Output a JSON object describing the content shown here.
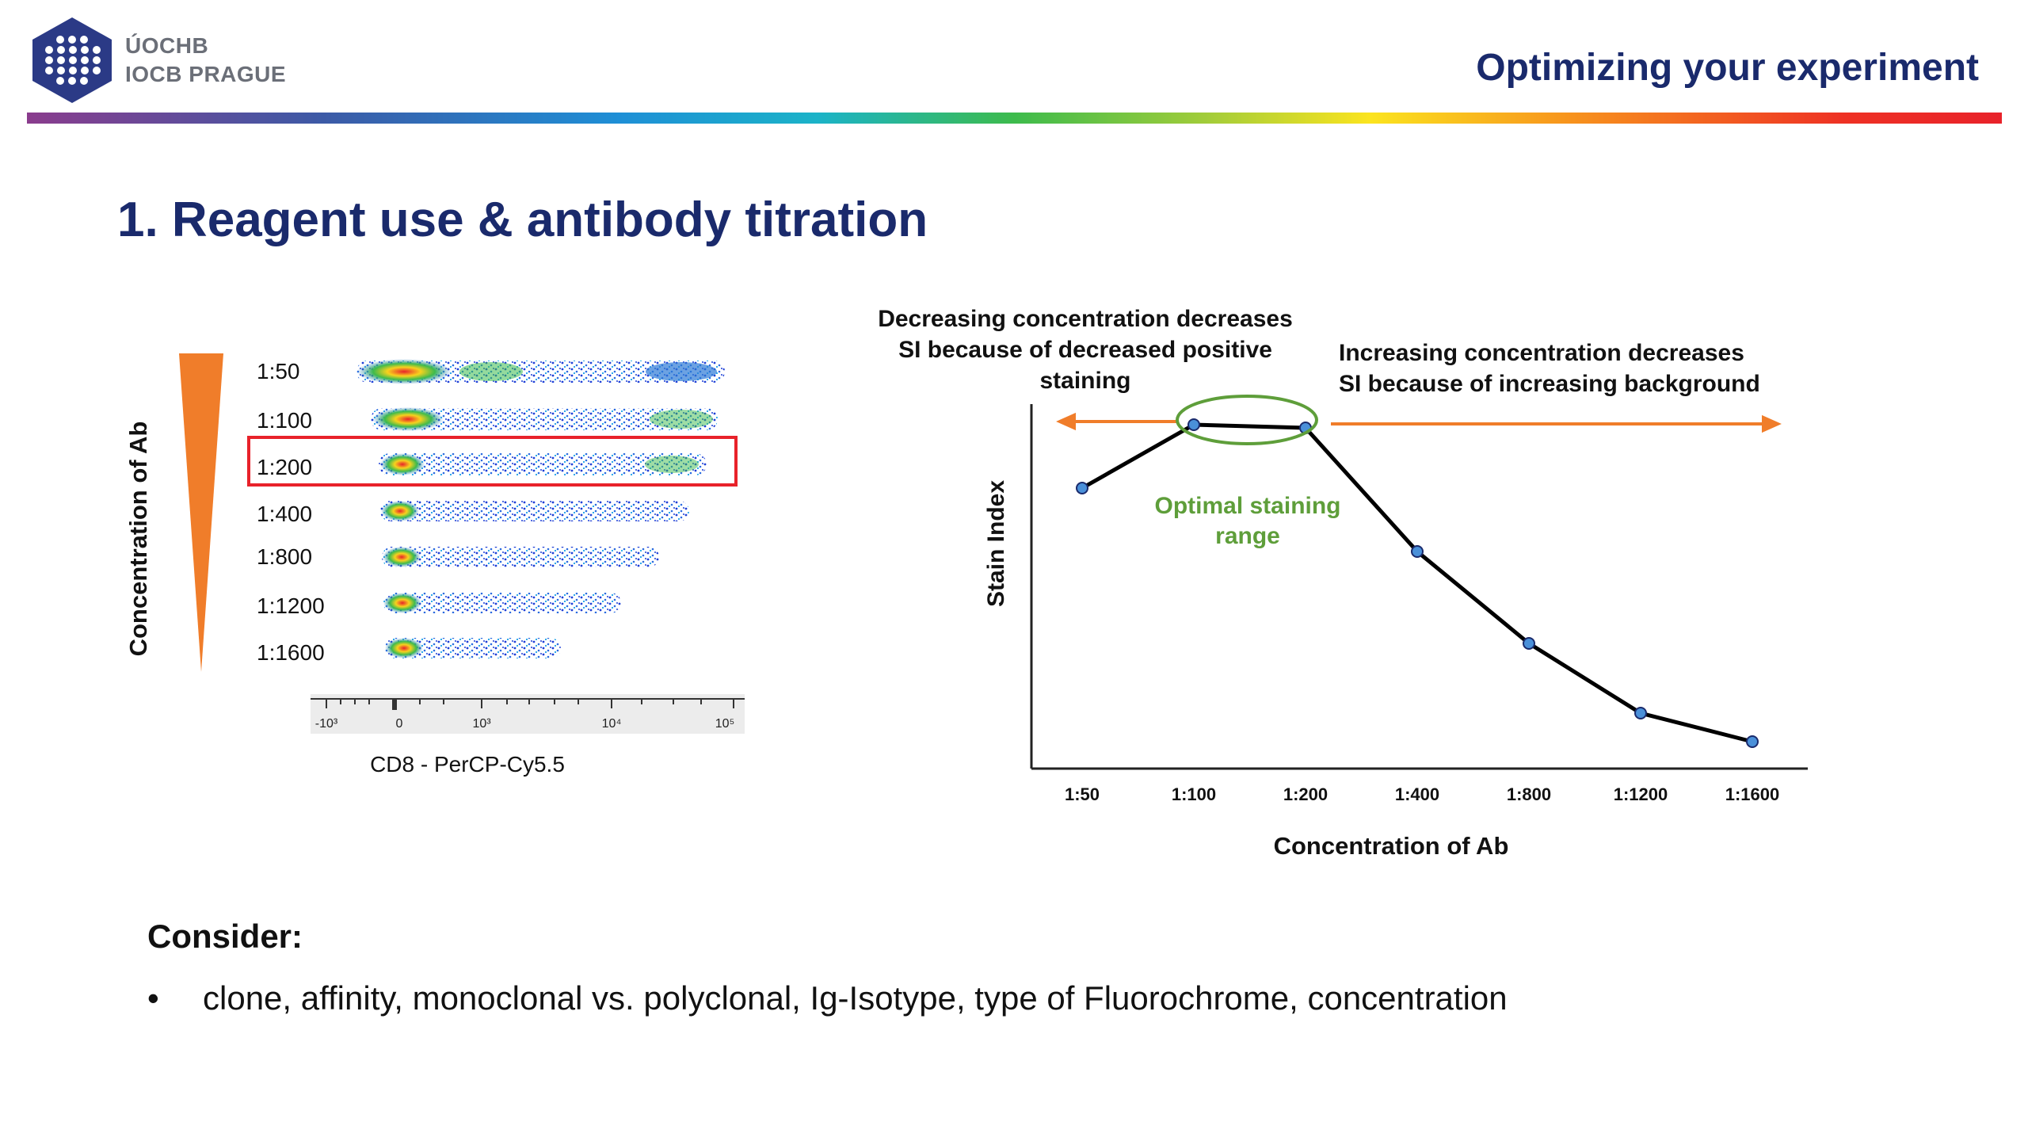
{
  "header": {
    "logo_line1": "ÚOCHB",
    "logo_line2": "IOCB PRAGUE",
    "title": "Optimizing your experiment"
  },
  "slide": {
    "title": "1. Reagent use & antibody titration"
  },
  "flow_panel": {
    "y_label": "Concentration of Ab",
    "dilutions": [
      "1:50",
      "1:100",
      "1:200",
      "1:400",
      "1:800",
      "1:1200",
      "1:1600"
    ],
    "highlighted": "1:200",
    "axis_ticks": [
      "-10³",
      "0",
      "10³",
      "10⁴",
      "10⁵"
    ],
    "x_label": "CD8 - PerCP-Cy5.5"
  },
  "chart_data": {
    "type": "line",
    "title": "",
    "xlabel": "Concentration of Ab",
    "ylabel": "Stain Index",
    "categories": [
      "1:50",
      "1:100",
      "1:200",
      "1:400",
      "1:800",
      "1:1200",
      "1:1600"
    ],
    "values": [
      76,
      96,
      95,
      56,
      27,
      5,
      -4
    ],
    "ylim": [
      -10,
      100
    ],
    "line_color": "#000000",
    "marker_color": "#4a90d9",
    "annotations": {
      "left_text": [
        "Decreasing concentration decreases",
        "SI because of  decreased positive",
        "staining"
      ],
      "right_text": [
        "Increasing concentration decreases",
        "SI because of  increasing background"
      ],
      "optimal_text": [
        "Optimal staining",
        "range"
      ],
      "arrow_color": "#f07d2a",
      "optimal_color": "#5e9e3a"
    }
  },
  "consider": {
    "heading": "Consider:",
    "bullet": "•",
    "item": "clone, affinity, monoclonal vs. polyclonal, Ig-Isotype, type of Fluorochrome, concentration"
  }
}
